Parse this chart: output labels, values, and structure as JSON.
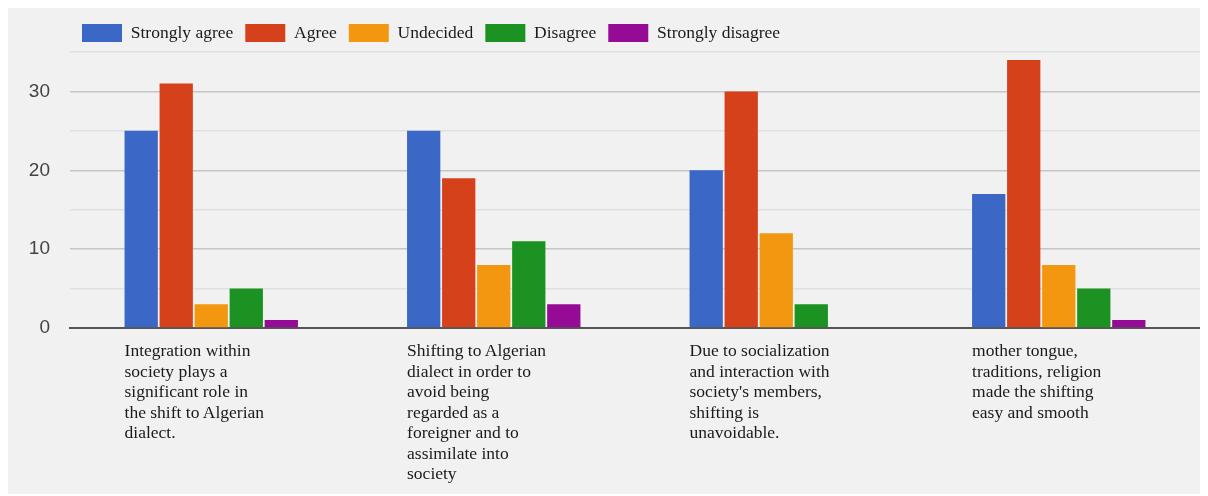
{
  "chart_data": {
    "type": "bar",
    "categories": [
      "Integration within society plays a significant role in the shift to Algerian dialect.",
      "Shifting to Algerian dialect in order to avoid being regarded as a foreigner and to assimilate into society",
      "Due to socialization and interaction with society's members, shifting is unavoidable.",
      "mother tongue, traditions, religion made the shifting easy and smooth"
    ],
    "series": [
      {
        "name": "Strongly agree",
        "color": "#3b68c6",
        "values": [
          25,
          25,
          20,
          17
        ]
      },
      {
        "name": "Agree",
        "color": "#d4411b",
        "values": [
          31,
          19,
          30,
          34
        ]
      },
      {
        "name": "Undecided",
        "color": "#f2970f",
        "values": [
          3,
          8,
          12,
          8
        ]
      },
      {
        "name": "Disagree",
        "color": "#1b9222",
        "values": [
          5,
          11,
          3,
          5
        ]
      },
      {
        "name": "Strongly disagree",
        "color": "#950b95",
        "values": [
          1,
          3,
          0,
          1
        ]
      }
    ],
    "ylim": [
      0,
      35
    ],
    "yticks": [
      0,
      {
        "value": 5,
        "label": null
      },
      10,
      {
        "value": 15,
        "label": null
      },
      20,
      {
        "value": 25,
        "label": null
      },
      30,
      {
        "value": 35,
        "label": null
      }
    ],
    "grid": "y",
    "legend": "top left"
  }
}
